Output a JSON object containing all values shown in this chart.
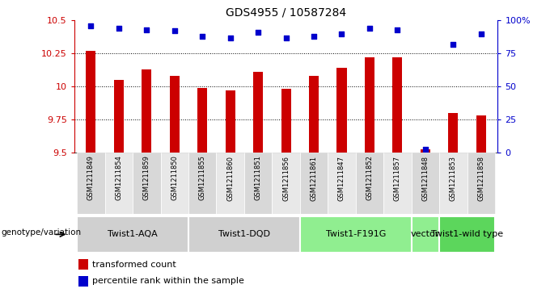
{
  "title": "GDS4955 / 10587284",
  "samples": [
    "GSM1211849",
    "GSM1211854",
    "GSM1211859",
    "GSM1211850",
    "GSM1211855",
    "GSM1211860",
    "GSM1211851",
    "GSM1211856",
    "GSM1211861",
    "GSM1211847",
    "GSM1211852",
    "GSM1211857",
    "GSM1211848",
    "GSM1211853",
    "GSM1211858"
  ],
  "bar_values": [
    10.27,
    10.05,
    10.13,
    10.08,
    9.99,
    9.97,
    10.11,
    9.98,
    10.08,
    10.14,
    10.22,
    10.22,
    9.52,
    9.8,
    9.78
  ],
  "percentile_values": [
    96,
    94,
    93,
    92,
    88,
    87,
    91,
    87,
    88,
    90,
    94,
    93,
    2,
    82,
    90
  ],
  "ylim_left": [
    9.5,
    10.5
  ],
  "ylim_right": [
    0,
    100
  ],
  "yticks_left": [
    9.5,
    9.75,
    10.0,
    10.25,
    10.5
  ],
  "ytick_labels_left": [
    "9.5",
    "9.75",
    "10",
    "10.25",
    "10.5"
  ],
  "yticks_right": [
    0,
    25,
    50,
    75,
    100
  ],
  "ytick_labels_right": [
    "0",
    "25",
    "50",
    "75",
    "100%"
  ],
  "bar_color": "#cc0000",
  "dot_color": "#0000cc",
  "groups": [
    {
      "label": "Twist1-AQA",
      "start": 0,
      "end": 3,
      "color": "#d0d0d0"
    },
    {
      "label": "Twist1-DQD",
      "start": 4,
      "end": 7,
      "color": "#d0d0d0"
    },
    {
      "label": "Twist1-F191G",
      "start": 8,
      "end": 11,
      "color": "#90ee90"
    },
    {
      "label": "vector",
      "start": 12,
      "end": 12,
      "color": "#90ee90"
    },
    {
      "label": "Twist1-wild type",
      "start": 13,
      "end": 14,
      "color": "#5cd65c"
    }
  ],
  "legend_bar_label": "transformed count",
  "legend_dot_label": "percentile rank within the sample",
  "genotype_label": "genotype/variation",
  "dotted_lines": [
    9.75,
    10.0,
    10.25
  ],
  "background_color": "#ffffff",
  "plot_bg": "#ffffff",
  "cell_bg_odd": "#d8d8d8",
  "cell_bg_even": "#e8e8e8"
}
